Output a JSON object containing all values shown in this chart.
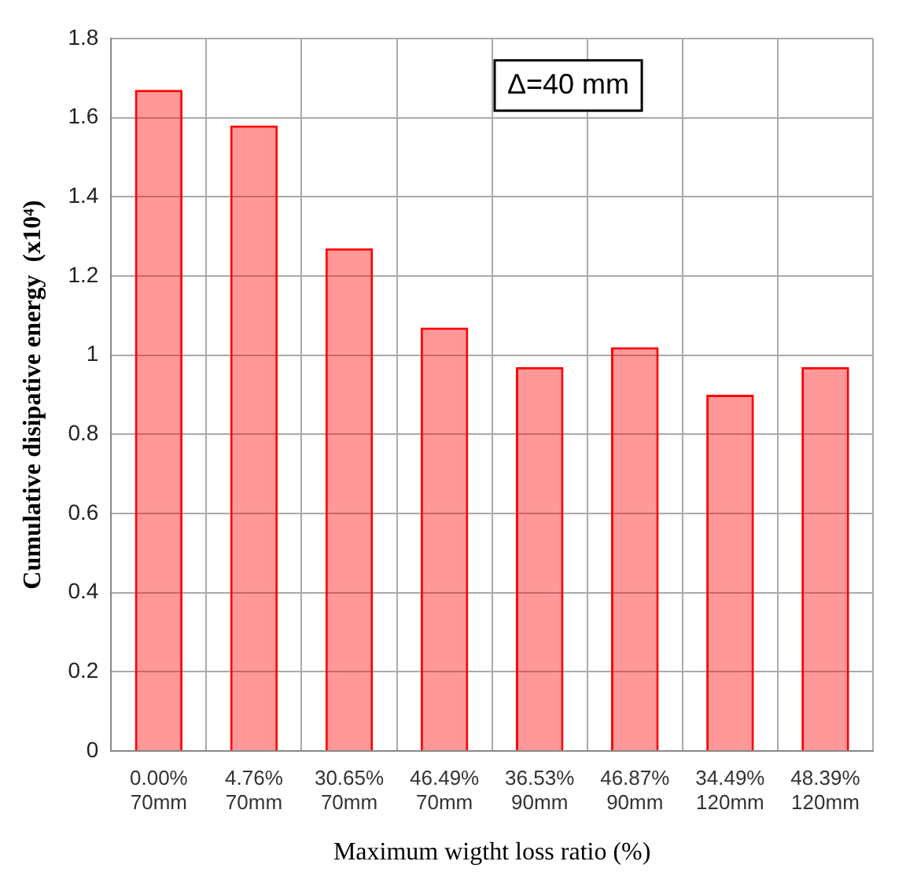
{
  "chart_data": {
    "type": "bar",
    "xlabel": "Maximum wigtht loss ratio (%)",
    "ylabel": "Cumulative disipative energy  (x10⁴)",
    "categories": [
      "0.00%\n70mm",
      "4.76%\n70mm",
      "30.65%\n70mm",
      "46.49%\n70mm",
      "36.53%\n90mm",
      "46.87%\n90mm",
      "34.49%\n120mm",
      "48.39%\n120mm"
    ],
    "series": [
      {
        "color": "#ff0000",
        "values": [
          1.67,
          1.58,
          1.27,
          1.07,
          0.97,
          1.02,
          0.9,
          0.97
        ]
      }
    ],
    "ylim": [
      0,
      1.8
    ],
    "yticks": [
      0,
      0.2,
      0.4,
      0.6,
      0.8,
      1,
      1.2,
      1.4,
      1.6,
      1.8
    ],
    "grid": true,
    "legend": false,
    "annotations": [
      "Δ=40 mm"
    ]
  }
}
